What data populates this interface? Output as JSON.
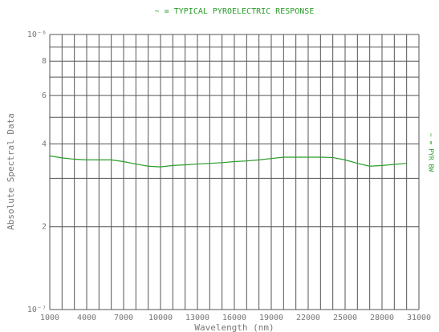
{
  "chart_data": {
    "type": "line",
    "title": "~ = TYPICAL PYROELECTRIC RESPONSE",
    "xlabel": "Wavelength (nm)",
    "ylabel": "Absolute Spectral Data",
    "right_label": "~ = PYR BW",
    "x": [
      1000,
      2000,
      3000,
      4000,
      5000,
      6000,
      7000,
      8000,
      9000,
      10000,
      11000,
      12000,
      13000,
      14000,
      15000,
      16000,
      17000,
      18000,
      19000,
      20000,
      21000,
      22000,
      23000,
      24000,
      25000,
      26000,
      27000,
      28000,
      29000,
      30000
    ],
    "series": [
      {
        "name": "~ = TYPICAL PYROELECTRIC RESPONSE",
        "color": "#2a9d2a",
        "values": [
          3.62e-07,
          3.56e-07,
          3.52e-07,
          3.5e-07,
          3.5e-07,
          3.5e-07,
          3.45e-07,
          3.38e-07,
          3.32e-07,
          3.3e-07,
          3.34e-07,
          3.36e-07,
          3.38e-07,
          3.4e-07,
          3.42e-07,
          3.45e-07,
          3.47e-07,
          3.5e-07,
          3.54e-07,
          3.58e-07,
          3.58e-07,
          3.58e-07,
          3.58e-07,
          3.57e-07,
          3.5e-07,
          3.4e-07,
          3.32e-07,
          3.34e-07,
          3.37e-07,
          3.4e-07
        ]
      }
    ],
    "xlim": [
      1000,
      31000
    ],
    "xticks": [
      1000,
      4000,
      7000,
      10000,
      13000,
      16000,
      19000,
      22000,
      25000,
      28000,
      31000
    ],
    "minor_xticks": [
      2000,
      3000,
      5000,
      6000,
      8000,
      9000,
      11000,
      12000,
      14000,
      15000,
      17000,
      18000,
      20000,
      21000,
      23000,
      24000,
      26000,
      27000,
      29000,
      30000
    ],
    "ylim": [
      1e-07,
      1e-06
    ],
    "yscale": "log",
    "yticks": [
      {
        "value": 1e-07,
        "label": "10⁻⁷"
      },
      {
        "value": 2e-07,
        "label": "2"
      },
      {
        "value": 4e-07,
        "label": "4"
      },
      {
        "value": 6e-07,
        "label": "6"
      },
      {
        "value": 8e-07,
        "label": "8"
      },
      {
        "value": 1e-06,
        "label": "10⁻⁶"
      }
    ],
    "minor_yticks": [
      3e-07,
      5e-07,
      7e-07,
      9e-07
    ],
    "grid": true
  }
}
